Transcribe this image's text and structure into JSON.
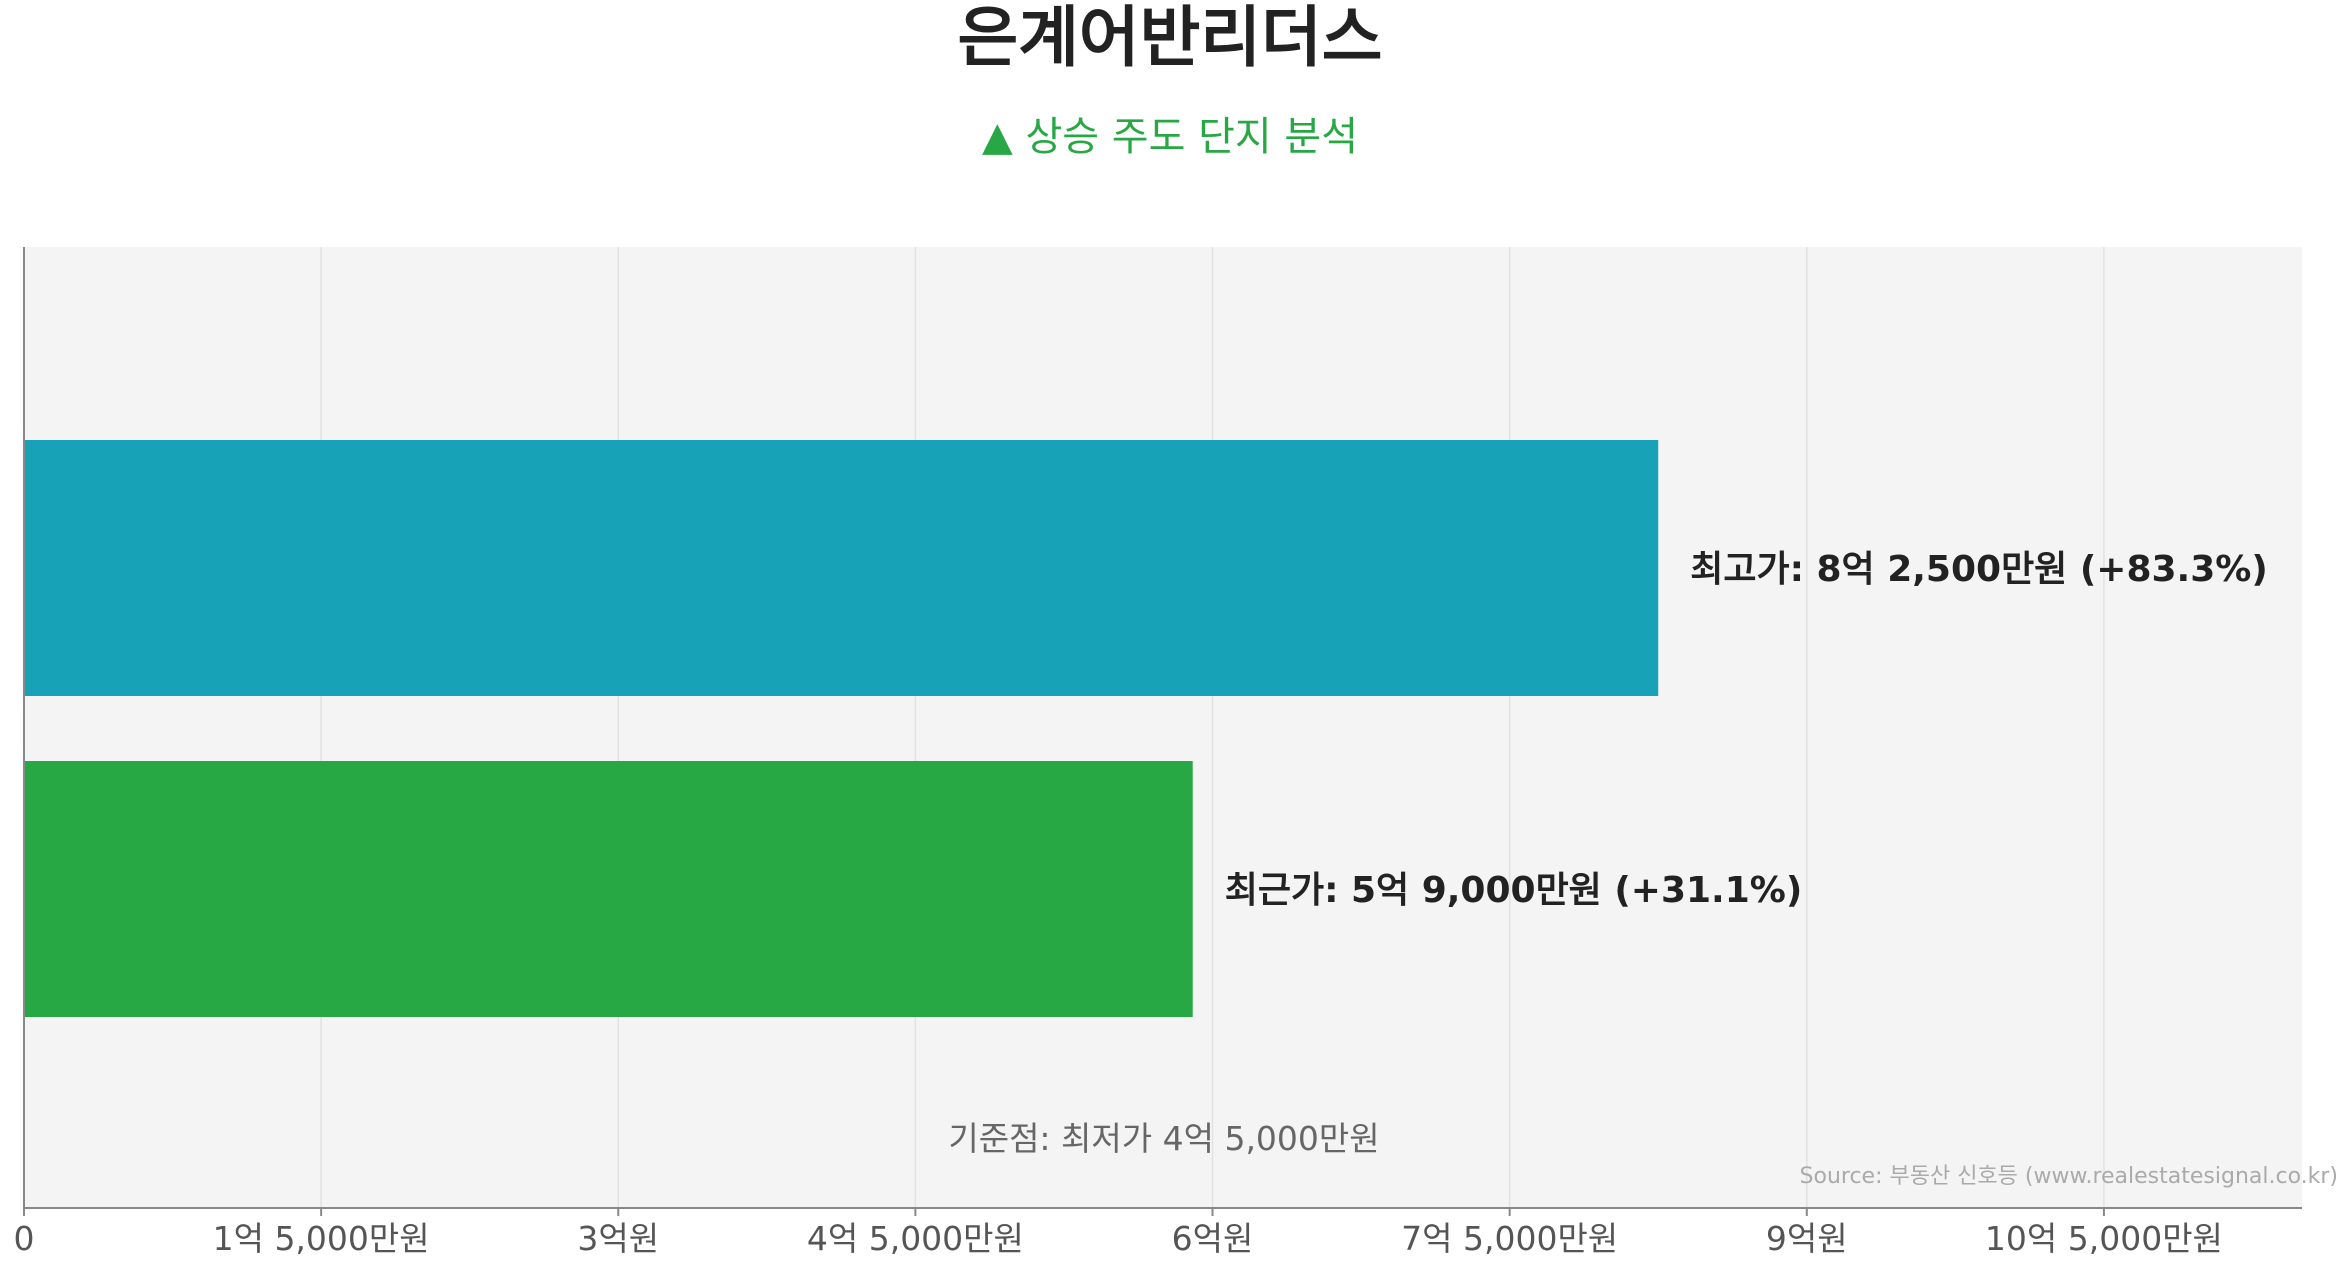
{
  "chart_data": {
    "type": "bar",
    "orientation": "horizontal",
    "title": "은계어반리더스",
    "subtitle": "▲ 상승 주도 단지 분석",
    "xlim": [
      0,
      1150000000
    ],
    "x_ticks": [
      {
        "value": 0,
        "label": "0"
      },
      {
        "value": 150000000,
        "label": "1억 5,000만원"
      },
      {
        "value": 300000000,
        "label": "3억원"
      },
      {
        "value": 450000000,
        "label": "4억 5,000만원"
      },
      {
        "value": 600000000,
        "label": "6억원"
      },
      {
        "value": 750000000,
        "label": "7억 5,000만원"
      },
      {
        "value": 900000000,
        "label": "9억원"
      },
      {
        "value": 1050000000,
        "label": "10억 5,000만원"
      }
    ],
    "bars": [
      {
        "name": "최고가",
        "value": 825000000,
        "color": "#17a2b8",
        "label": "최고가: 8억 2,500만원 (+83.3%)"
      },
      {
        "name": "최근가",
        "value": 590000000,
        "color": "#28a745",
        "label": "최근가: 5억 9,000만원 (+31.1%)"
      }
    ],
    "baseline_label": "기준점: 최저가 4억 5,000만원",
    "source": "Source: 부동산 신호등 (www.realestatesignal.co.kr)",
    "grid": true,
    "colors": {
      "plot_background": "#f4f4f4",
      "subtitle": "#28a745",
      "grid": "#e2e2e2",
      "axis": "#888888"
    }
  }
}
